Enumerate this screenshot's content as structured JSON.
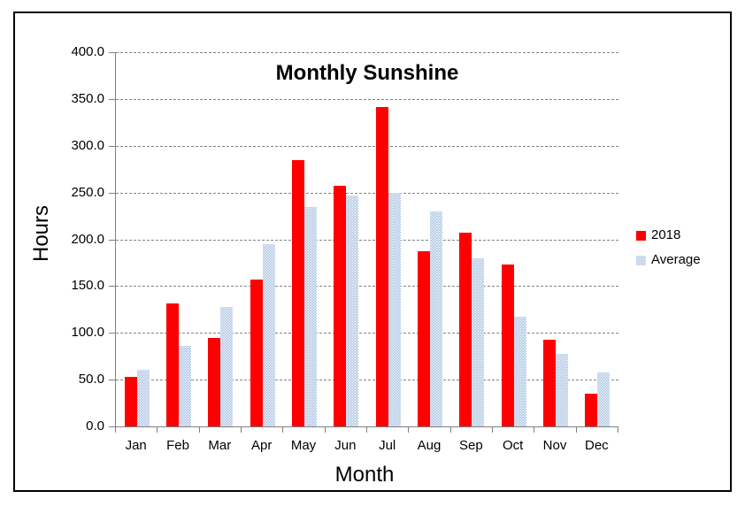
{
  "chart_data": {
    "type": "bar",
    "title": "Monthly Sunshine",
    "xlabel": "Month",
    "ylabel": "Hours",
    "categories": [
      "Jan",
      "Feb",
      "Mar",
      "Apr",
      "May",
      "Jun",
      "Jul",
      "Aug",
      "Sep",
      "Oct",
      "Nov",
      "Dec"
    ],
    "series": [
      {
        "name": "2018",
        "color": "#fe0000",
        "fill": "solid",
        "values": [
          53,
          131,
          95,
          157,
          285,
          257,
          341,
          187,
          207,
          173,
          93,
          35
        ]
      },
      {
        "name": "Average",
        "color": "#9fbadd",
        "fill": "white-dot-pattern",
        "values": [
          61,
          86,
          128,
          195,
          235,
          247,
          250,
          230,
          180,
          117,
          78,
          58
        ]
      }
    ],
    "ylim": [
      0,
      400
    ],
    "ytick_step": 50,
    "ytick_labels": [
      "400.0",
      "350.0",
      "300.0",
      "250.0",
      "200.0",
      "150.0",
      "100.0",
      "50.0",
      "0.0"
    ],
    "grid": true,
    "legend_position": "right",
    "legend_entries": [
      "2018",
      "Average"
    ]
  }
}
